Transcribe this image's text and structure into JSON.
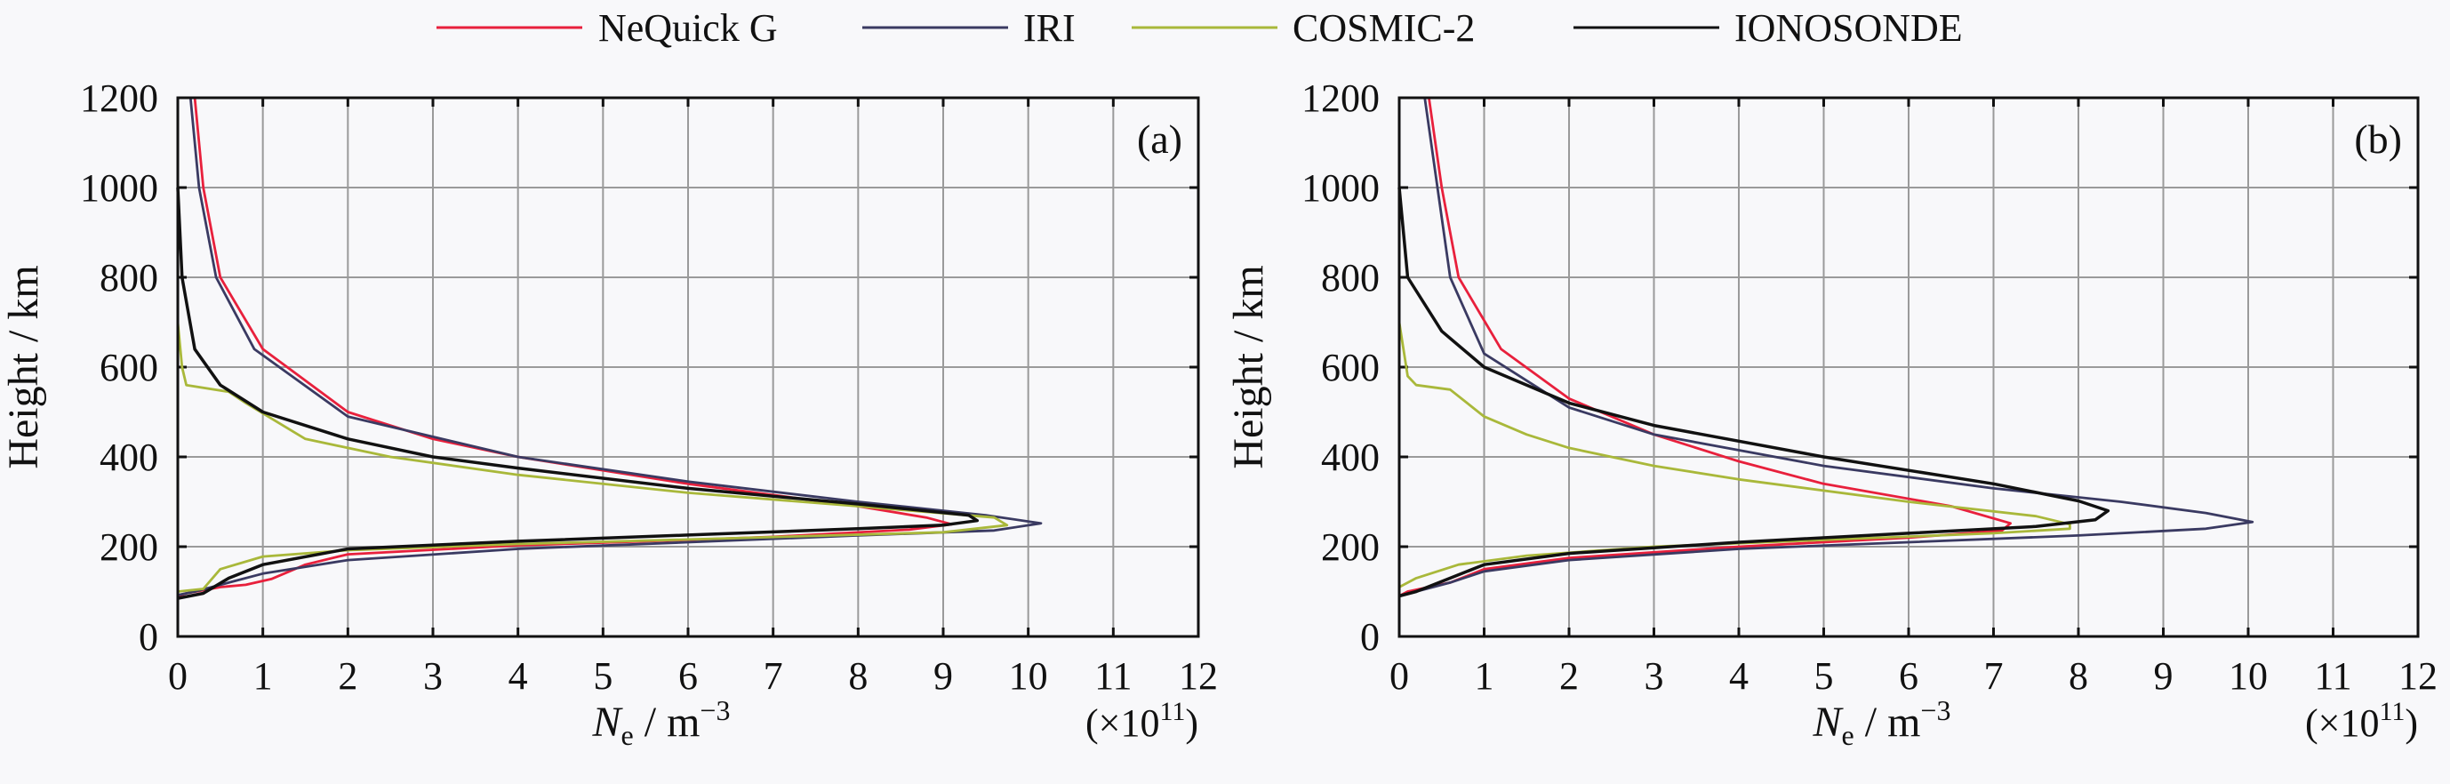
{
  "legend": [
    {
      "name": "NeQuick G",
      "color": "#e8203c"
    },
    {
      "name": "IRI",
      "color": "#3a3a62"
    },
    {
      "name": "COSMIC-2",
      "color": "#a9b83a"
    },
    {
      "name": "IONOSONDE",
      "color": "#111111"
    }
  ],
  "chart_data": [
    {
      "type": "line",
      "panel_label": "(a)",
      "xlabel_main": "N",
      "xlabel_sub": "e",
      "xlabel_unit": " / m",
      "xlabel_exp": "−3",
      "x_multiplier_prefix": "(×10",
      "x_multiplier_exp": "11",
      "x_multiplier_suffix": ")",
      "ylabel": "Height / km",
      "xlim": [
        0,
        12
      ],
      "ylim": [
        0,
        1200
      ],
      "xticks": [
        "0",
        "1",
        "2",
        "3",
        "4",
        "5",
        "6",
        "7",
        "8",
        "9",
        "10",
        "11",
        "12"
      ],
      "yticks": [
        "0",
        "200",
        "400",
        "600",
        "800",
        "1000",
        "1200"
      ],
      "grid": true,
      "series": [
        {
          "name": "NeQuick G",
          "points": [
            [
              0.2,
              1200
            ],
            [
              0.3,
              1000
            ],
            [
              0.5,
              800
            ],
            [
              1.0,
              640
            ],
            [
              2,
              500
            ],
            [
              3,
              440
            ],
            [
              4,
              400
            ],
            [
              6,
              340
            ],
            [
              8,
              290
            ],
            [
              8.8,
              265
            ],
            [
              9.1,
              250
            ],
            [
              8.6,
              238
            ],
            [
              7,
              222
            ],
            [
              6,
              215
            ],
            [
              4,
              203
            ],
            [
              2,
              183
            ],
            [
              1.5,
              160
            ],
            [
              1.1,
              128
            ],
            [
              0.8,
              115
            ],
            [
              0.5,
              110
            ],
            [
              0.1,
              96
            ],
            [
              0,
              90
            ]
          ]
        },
        {
          "name": "IRI",
          "points": [
            [
              0.15,
              1200
            ],
            [
              0.25,
              1000
            ],
            [
              0.45,
              800
            ],
            [
              0.9,
              640
            ],
            [
              2,
              490
            ],
            [
              4,
              400
            ],
            [
              6,
              345
            ],
            [
              8,
              300
            ],
            [
              9.5,
              270
            ],
            [
              10.15,
              252
            ],
            [
              9.6,
              236
            ],
            [
              8,
              225
            ],
            [
              6,
              210
            ],
            [
              4,
              195
            ],
            [
              2,
              170
            ],
            [
              1,
              140
            ],
            [
              0.6,
              120
            ],
            [
              0.2,
              100
            ],
            [
              0,
              92
            ]
          ]
        },
        {
          "name": "COSMIC-2",
          "points": [
            [
              0,
              1200
            ],
            [
              0,
              700
            ],
            [
              0.05,
              600
            ],
            [
              0.1,
              560
            ],
            [
              0.6,
              545
            ],
            [
              0.8,
              520
            ],
            [
              1.5,
              440
            ],
            [
              2.5,
              400
            ],
            [
              4,
              360
            ],
            [
              6,
              320
            ],
            [
              8,
              290
            ],
            [
              9.6,
              265
            ],
            [
              9.75,
              248
            ],
            [
              9,
              232
            ],
            [
              6,
              216
            ],
            [
              4,
              206
            ],
            [
              2,
              192
            ],
            [
              1,
              178
            ],
            [
              0.5,
              150
            ],
            [
              0.3,
              106
            ],
            [
              0,
              100
            ],
            [
              0,
              0
            ]
          ]
        },
        {
          "name": "IONOSONDE",
          "points": [
            [
              0,
              1000
            ],
            [
              0.05,
              800
            ],
            [
              0.2,
              640
            ],
            [
              0.5,
              560
            ],
            [
              1,
              500
            ],
            [
              2,
              440
            ],
            [
              3,
              400
            ],
            [
              4,
              375
            ],
            [
              6,
              330
            ],
            [
              8,
              295
            ],
            [
              9.3,
              270
            ],
            [
              9.4,
              258
            ],
            [
              9,
              248
            ],
            [
              8,
              240
            ],
            [
              6,
              226
            ],
            [
              4,
              212
            ],
            [
              2,
              195
            ],
            [
              1,
              160
            ],
            [
              0.6,
              130
            ],
            [
              0.3,
              96
            ],
            [
              0,
              85
            ]
          ]
        }
      ]
    },
    {
      "type": "line",
      "panel_label": "(b)",
      "xlabel_main": "N",
      "xlabel_sub": "e",
      "xlabel_unit": " / m",
      "xlabel_exp": "−3",
      "x_multiplier_prefix": "(×10",
      "x_multiplier_exp": "11",
      "x_multiplier_suffix": ")",
      "ylabel": "Height / km",
      "xlim": [
        0,
        12
      ],
      "ylim": [
        0,
        1200
      ],
      "xticks": [
        "0",
        "1",
        "2",
        "3",
        "4",
        "5",
        "6",
        "7",
        "8",
        "9",
        "10",
        "11",
        "12"
      ],
      "yticks": [
        "0",
        "200",
        "400",
        "600",
        "800",
        "1000",
        "1200"
      ],
      "grid": true,
      "series": [
        {
          "name": "NeQuick G",
          "points": [
            [
              0.35,
              1200
            ],
            [
              0.5,
              1000
            ],
            [
              0.7,
              800
            ],
            [
              1.2,
              640
            ],
            [
              2,
              530
            ],
            [
              3,
              450
            ],
            [
              4,
              390
            ],
            [
              5,
              340
            ],
            [
              6.5,
              290
            ],
            [
              7.2,
              252
            ],
            [
              7.1,
              236
            ],
            [
              6,
              220
            ],
            [
              4,
              200
            ],
            [
              2,
              175
            ],
            [
              1,
              150
            ],
            [
              0.6,
              120
            ],
            [
              0.1,
              100
            ],
            [
              0,
              90
            ]
          ]
        },
        {
          "name": "IRI",
          "points": [
            [
              0.3,
              1200
            ],
            [
              0.45,
              1000
            ],
            [
              0.6,
              800
            ],
            [
              1,
              630
            ],
            [
              2,
              510
            ],
            [
              3,
              450
            ],
            [
              5,
              380
            ],
            [
              7,
              330
            ],
            [
              8.5,
              300
            ],
            [
              9.5,
              275
            ],
            [
              10.05,
              255
            ],
            [
              9.5,
              240
            ],
            [
              8,
              225
            ],
            [
              6,
              210
            ],
            [
              4,
              195
            ],
            [
              2,
              170
            ],
            [
              1,
              145
            ],
            [
              0.6,
              120
            ],
            [
              0,
              90
            ]
          ]
        },
        {
          "name": "COSMIC-2",
          "points": [
            [
              0,
              1200
            ],
            [
              0,
              700
            ],
            [
              0.1,
              580
            ],
            [
              0.2,
              560
            ],
            [
              0.6,
              550
            ],
            [
              1,
              490
            ],
            [
              1.5,
              450
            ],
            [
              2,
              420
            ],
            [
              3,
              380
            ],
            [
              4,
              350
            ],
            [
              6,
              300
            ],
            [
              7.5,
              268
            ],
            [
              7.9,
              250
            ],
            [
              7.9,
              240
            ],
            [
              7,
              230
            ],
            [
              5,
              215
            ],
            [
              3,
              200
            ],
            [
              1.5,
              180
            ],
            [
              0.7,
              160
            ],
            [
              0.2,
              130
            ],
            [
              0,
              110
            ],
            [
              0,
              0
            ]
          ]
        },
        {
          "name": "IONOSONDE",
          "points": [
            [
              0,
              1000
            ],
            [
              0.1,
              800
            ],
            [
              0.5,
              680
            ],
            [
              1,
              600
            ],
            [
              2,
              520
            ],
            [
              3,
              470
            ],
            [
              5,
              400
            ],
            [
              7,
              340
            ],
            [
              8,
              302
            ],
            [
              8.35,
              280
            ],
            [
              8.2,
              260
            ],
            [
              7.5,
              245
            ],
            [
              6,
              230
            ],
            [
              4,
              210
            ],
            [
              2,
              185
            ],
            [
              1,
              160
            ],
            [
              0.6,
              130
            ],
            [
              0.2,
              100
            ],
            [
              0,
              90
            ]
          ]
        }
      ]
    }
  ]
}
